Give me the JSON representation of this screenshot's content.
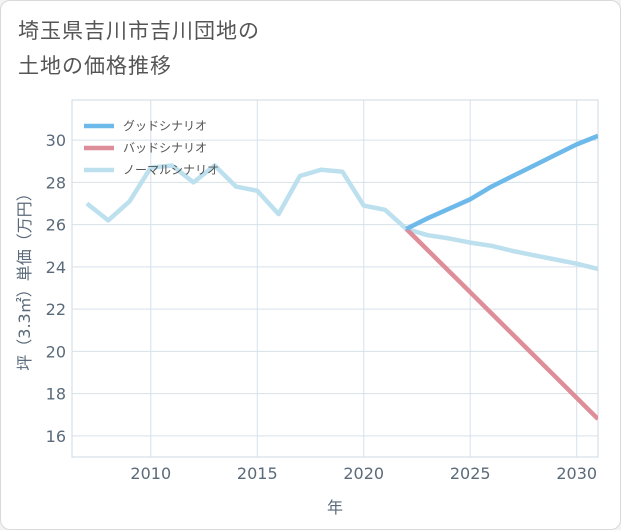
{
  "title": {
    "line1": "埼玉県吉川市吉川団地の",
    "line2": "土地の価格推移"
  },
  "chart_data": {
    "type": "line",
    "xlabel": "年",
    "ylabel": "坪（3.3㎡）単価（万円）",
    "xlim": [
      2006.3,
      2031
    ],
    "ylim": [
      15,
      31.9
    ],
    "x_ticks": [
      2010,
      2015,
      2020,
      2025,
      2030
    ],
    "y_ticks": [
      16,
      18,
      20,
      22,
      24,
      26,
      28,
      30
    ],
    "x_tick_labels": [
      "2010",
      "2015",
      "2020",
      "2025",
      "2030"
    ],
    "y_tick_labels": [
      "16",
      "18",
      "20",
      "22",
      "24",
      "26",
      "28",
      "30"
    ],
    "grid": true,
    "legend_position": "top-left",
    "series": [
      {
        "name": "グッドシナリオ",
        "color": "#6cb9ea",
        "x": [
          2022,
          2023,
          2024,
          2025,
          2026,
          2027,
          2028,
          2029,
          2030,
          2031
        ],
        "y": [
          25.8,
          26.3,
          26.75,
          27.2,
          27.8,
          28.3,
          28.8,
          29.3,
          29.8,
          30.2
        ]
      },
      {
        "name": "バッドシナリオ",
        "color": "#de8e98",
        "x": [
          2022,
          2023,
          2024,
          2025,
          2026,
          2027,
          2028,
          2029,
          2030,
          2031
        ],
        "y": [
          25.8,
          24.8,
          23.8,
          22.8,
          21.8,
          20.8,
          19.8,
          18.8,
          17.8,
          16.8
        ]
      },
      {
        "name": "ノーマルシナリオ",
        "color": "#bde0ef",
        "x": [
          2007,
          2008,
          2009,
          2010,
          2011,
          2012,
          2013,
          2014,
          2015,
          2016,
          2017,
          2018,
          2019,
          2020,
          2021,
          2022,
          2023,
          2024,
          2025,
          2026,
          2027,
          2028,
          2029,
          2030,
          2031
        ],
        "y": [
          27.0,
          26.2,
          27.1,
          28.7,
          28.8,
          28.0,
          28.8,
          27.8,
          27.6,
          26.5,
          28.3,
          28.6,
          28.5,
          26.9,
          26.7,
          25.8,
          25.5,
          25.35,
          25.15,
          25.0,
          24.75,
          24.55,
          24.35,
          24.15,
          23.9
        ]
      }
    ]
  }
}
